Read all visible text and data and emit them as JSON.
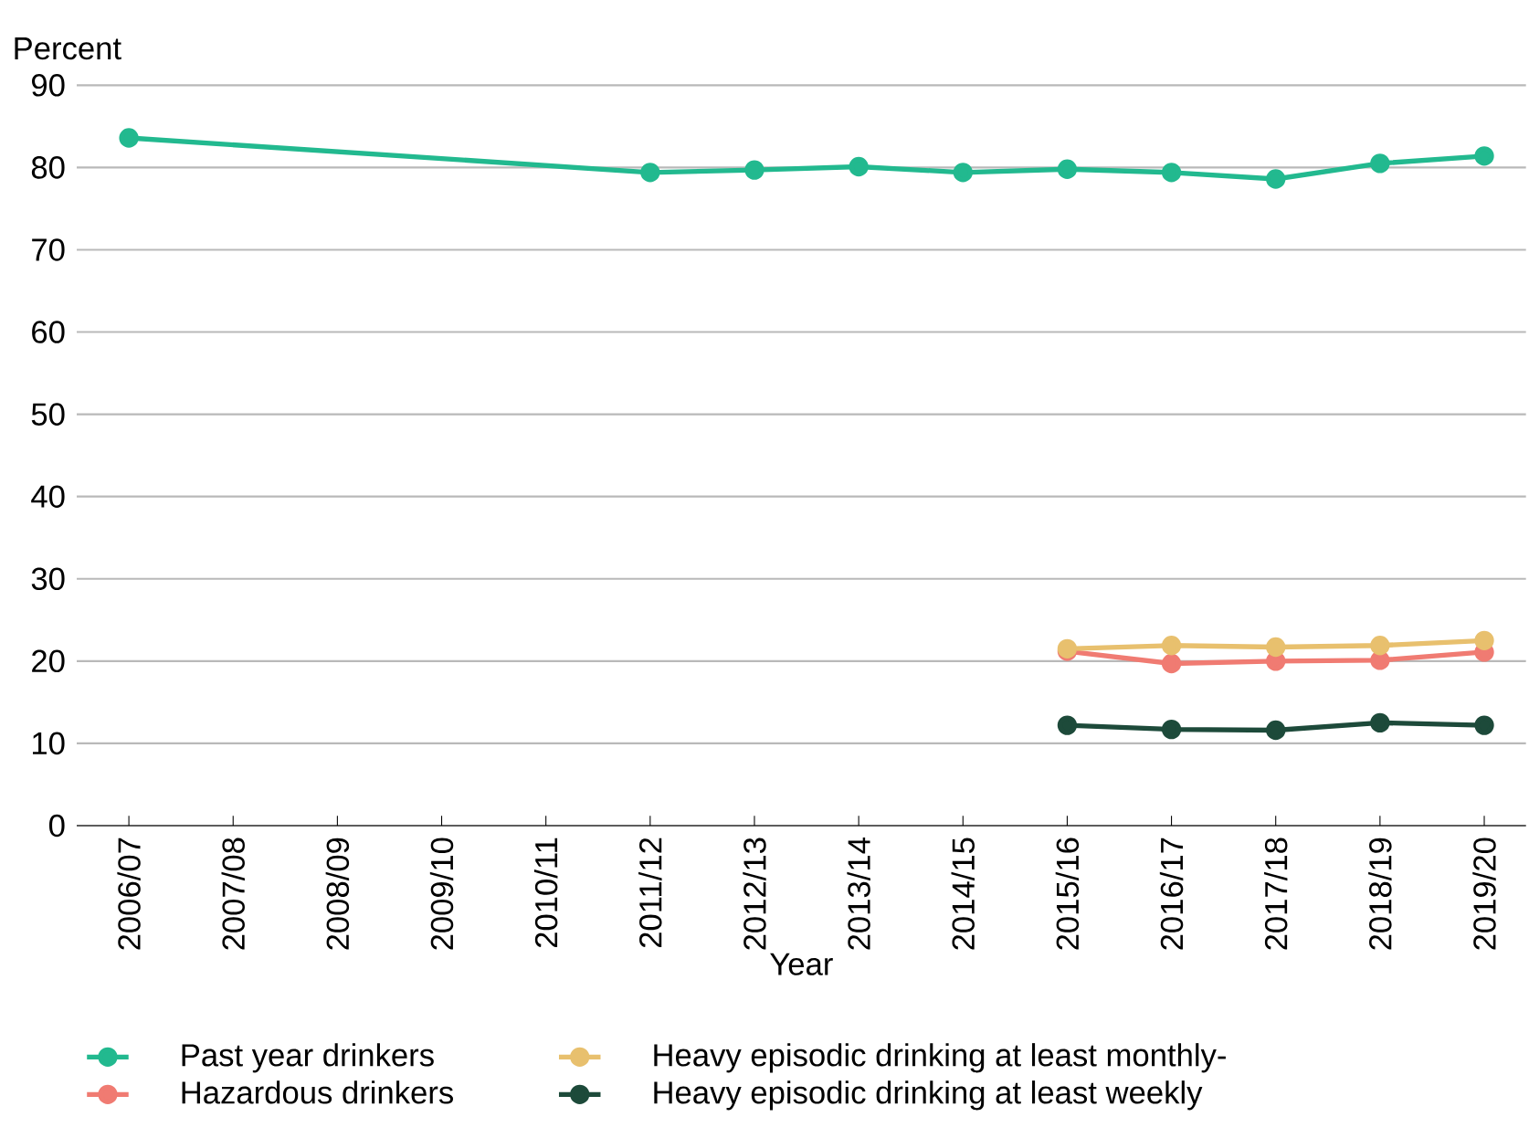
{
  "chart_data": {
    "type": "line",
    "xlabel": "Year",
    "ylabel": "Percent",
    "categories": [
      "2006/07",
      "2007/08",
      "2008/09",
      "2009/10",
      "2010/11",
      "2011/12",
      "2012/13",
      "2013/14",
      "2014/15",
      "2015/16",
      "2016/17",
      "2017/18",
      "2018/19",
      "2019/20"
    ],
    "series": [
      {
        "name": "Past year drinkers",
        "color": "#22b98f",
        "values": [
          83.6,
          null,
          null,
          null,
          null,
          79.4,
          79.7,
          80.1,
          79.4,
          79.8,
          79.4,
          78.6,
          80.5,
          81.4
        ]
      },
      {
        "name": "Hazardous drinkers",
        "color": "#f07b72",
        "values": [
          null,
          null,
          null,
          null,
          null,
          null,
          null,
          null,
          null,
          21.2,
          19.7,
          20.0,
          20.1,
          21.1
        ]
      },
      {
        "name": "Heavy episodic drinking at least monthly-",
        "color": "#e8c06e",
        "values": [
          null,
          null,
          null,
          null,
          null,
          null,
          null,
          null,
          null,
          21.5,
          21.9,
          21.7,
          21.9,
          22.5
        ]
      },
      {
        "name": "Heavy episodic drinking at least weekly",
        "color": "#1d4a3a",
        "values": [
          null,
          null,
          null,
          null,
          null,
          null,
          null,
          null,
          null,
          12.2,
          11.7,
          11.6,
          12.5,
          12.2
        ]
      }
    ],
    "ylim": [
      0,
      90
    ],
    "yticks": [
      0,
      10,
      20,
      30,
      40,
      50,
      60,
      70,
      80,
      90
    ],
    "grid": "y",
    "legend": "bottom",
    "marker": "circle",
    "line_style": "solid"
  }
}
